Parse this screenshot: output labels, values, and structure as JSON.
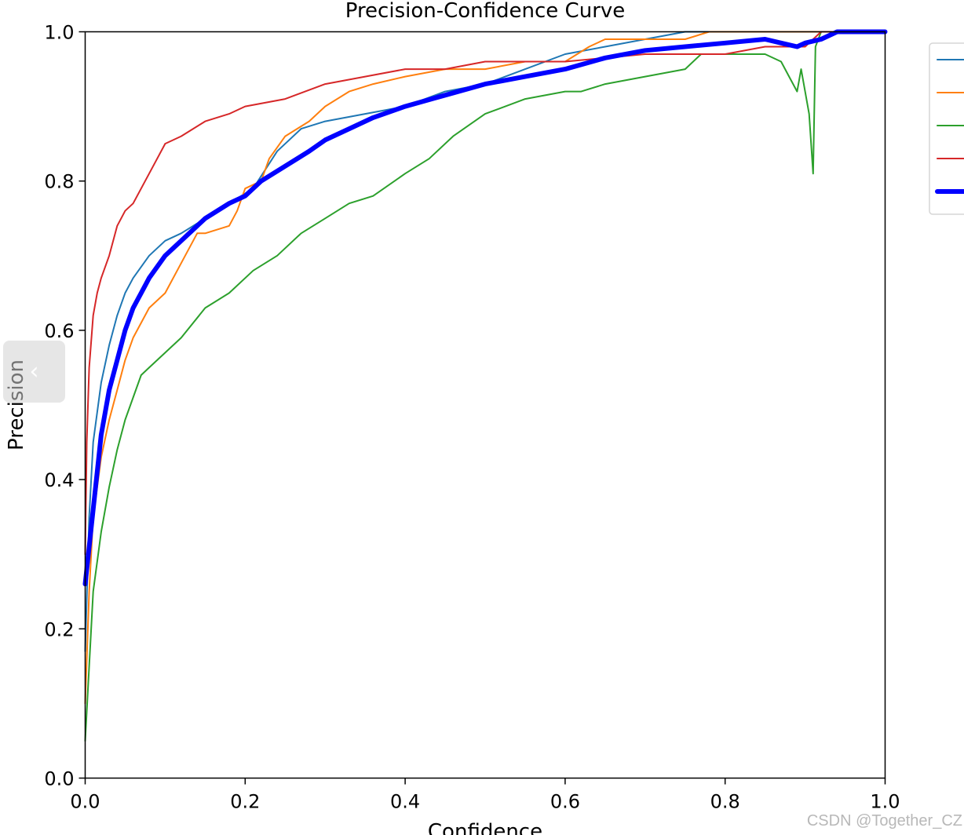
{
  "chart_data": {
    "type": "line",
    "title": "Precision-Confidence Curve",
    "xlabel": "Confidence",
    "ylabel": "Precision",
    "xlim": [
      0,
      1
    ],
    "ylim": [
      0,
      1
    ],
    "xticks": [
      "0.0",
      "0.2",
      "0.4",
      "0.6",
      "0.8",
      "1.0"
    ],
    "yticks": [
      "0.0",
      "0.2",
      "0.4",
      "0.6",
      "0.8",
      "1.0"
    ],
    "grid": false,
    "legend": "upper-right (outside plot, partially cropped)",
    "series": [
      {
        "color": "#1f77b4",
        "line_width": "thin",
        "x": [
          0.0,
          0.005,
          0.01,
          0.02,
          0.03,
          0.04,
          0.05,
          0.06,
          0.08,
          0.1,
          0.12,
          0.15,
          0.18,
          0.21,
          0.24,
          0.27,
          0.3,
          0.35,
          0.4,
          0.45,
          0.5,
          0.55,
          0.6,
          0.65,
          0.7,
          0.75,
          0.8,
          0.82,
          0.85,
          0.9,
          0.92,
          0.95,
          1.0
        ],
        "y": [
          0.17,
          0.35,
          0.45,
          0.53,
          0.58,
          0.62,
          0.65,
          0.67,
          0.7,
          0.72,
          0.73,
          0.75,
          0.77,
          0.79,
          0.84,
          0.87,
          0.88,
          0.89,
          0.9,
          0.92,
          0.93,
          0.95,
          0.97,
          0.98,
          0.99,
          1.0,
          1.0,
          1.0,
          1.0,
          1.0,
          1.0,
          1.0,
          1.0
        ]
      },
      {
        "color": "#ff7f0e",
        "line_width": "thin",
        "x": [
          0.0,
          0.005,
          0.01,
          0.02,
          0.03,
          0.04,
          0.05,
          0.06,
          0.08,
          0.1,
          0.12,
          0.14,
          0.15,
          0.18,
          0.19,
          0.2,
          0.22,
          0.23,
          0.25,
          0.28,
          0.3,
          0.33,
          0.36,
          0.4,
          0.45,
          0.5,
          0.55,
          0.6,
          0.63,
          0.65,
          0.7,
          0.75,
          0.78,
          0.85,
          1.0
        ],
        "y": [
          0.1,
          0.25,
          0.35,
          0.43,
          0.48,
          0.52,
          0.56,
          0.59,
          0.63,
          0.65,
          0.69,
          0.73,
          0.73,
          0.74,
          0.76,
          0.79,
          0.8,
          0.83,
          0.86,
          0.88,
          0.9,
          0.92,
          0.93,
          0.94,
          0.95,
          0.95,
          0.96,
          0.96,
          0.98,
          0.99,
          0.99,
          0.99,
          1.0,
          1.0,
          1.0
        ]
      },
      {
        "color": "#2ca02c",
        "line_width": "thin",
        "x": [
          0.0,
          0.005,
          0.01,
          0.02,
          0.03,
          0.04,
          0.05,
          0.06,
          0.07,
          0.08,
          0.1,
          0.12,
          0.15,
          0.18,
          0.21,
          0.24,
          0.27,
          0.3,
          0.33,
          0.36,
          0.4,
          0.43,
          0.46,
          0.5,
          0.55,
          0.6,
          0.62,
          0.65,
          0.7,
          0.75,
          0.77,
          0.8,
          0.85,
          0.87,
          0.88,
          0.89,
          0.895,
          0.9,
          0.905,
          0.91,
          0.913,
          0.92,
          0.95,
          1.0
        ],
        "y": [
          0.05,
          0.15,
          0.25,
          0.33,
          0.39,
          0.44,
          0.48,
          0.51,
          0.54,
          0.55,
          0.57,
          0.59,
          0.63,
          0.65,
          0.68,
          0.7,
          0.73,
          0.75,
          0.77,
          0.78,
          0.81,
          0.83,
          0.86,
          0.89,
          0.91,
          0.92,
          0.92,
          0.93,
          0.94,
          0.95,
          0.97,
          0.97,
          0.97,
          0.96,
          0.94,
          0.92,
          0.95,
          0.92,
          0.89,
          0.81,
          0.98,
          1.0,
          1.0,
          1.0
        ]
      },
      {
        "color": "#d62728",
        "line_width": "thin",
        "x": [
          0.0,
          0.002,
          0.005,
          0.01,
          0.015,
          0.02,
          0.03,
          0.04,
          0.05,
          0.06,
          0.07,
          0.08,
          0.09,
          0.1,
          0.12,
          0.15,
          0.18,
          0.2,
          0.25,
          0.3,
          0.35,
          0.4,
          0.45,
          0.5,
          0.55,
          0.6,
          0.7,
          0.8,
          0.85,
          0.88,
          0.9,
          0.92,
          0.95,
          1.0
        ],
        "y": [
          0.3,
          0.45,
          0.55,
          0.62,
          0.65,
          0.67,
          0.7,
          0.74,
          0.76,
          0.77,
          0.79,
          0.81,
          0.83,
          0.85,
          0.86,
          0.88,
          0.89,
          0.9,
          0.91,
          0.93,
          0.94,
          0.95,
          0.95,
          0.96,
          0.96,
          0.96,
          0.97,
          0.97,
          0.98,
          0.98,
          0.98,
          1.0,
          1.0,
          1.0
        ]
      },
      {
        "color": "#0000ff",
        "line_width": "thick",
        "x": [
          0.0,
          0.005,
          0.01,
          0.015,
          0.02,
          0.03,
          0.04,
          0.05,
          0.06,
          0.07,
          0.08,
          0.1,
          0.12,
          0.15,
          0.18,
          0.2,
          0.22,
          0.25,
          0.28,
          0.3,
          0.33,
          0.36,
          0.4,
          0.45,
          0.5,
          0.55,
          0.6,
          0.65,
          0.7,
          0.75,
          0.8,
          0.85,
          0.87,
          0.89,
          0.9,
          0.92,
          0.94,
          0.95,
          1.0
        ],
        "y": [
          0.26,
          0.31,
          0.36,
          0.41,
          0.46,
          0.52,
          0.56,
          0.6,
          0.63,
          0.65,
          0.67,
          0.7,
          0.72,
          0.75,
          0.77,
          0.78,
          0.8,
          0.82,
          0.84,
          0.855,
          0.87,
          0.885,
          0.9,
          0.915,
          0.93,
          0.94,
          0.95,
          0.965,
          0.975,
          0.98,
          0.985,
          0.99,
          0.985,
          0.98,
          0.985,
          0.99,
          1.0,
          1.0,
          1.0
        ]
      }
    ]
  },
  "watermark": "CSDN @Together_CZ",
  "collapse_button": {
    "glyph": "‹"
  }
}
